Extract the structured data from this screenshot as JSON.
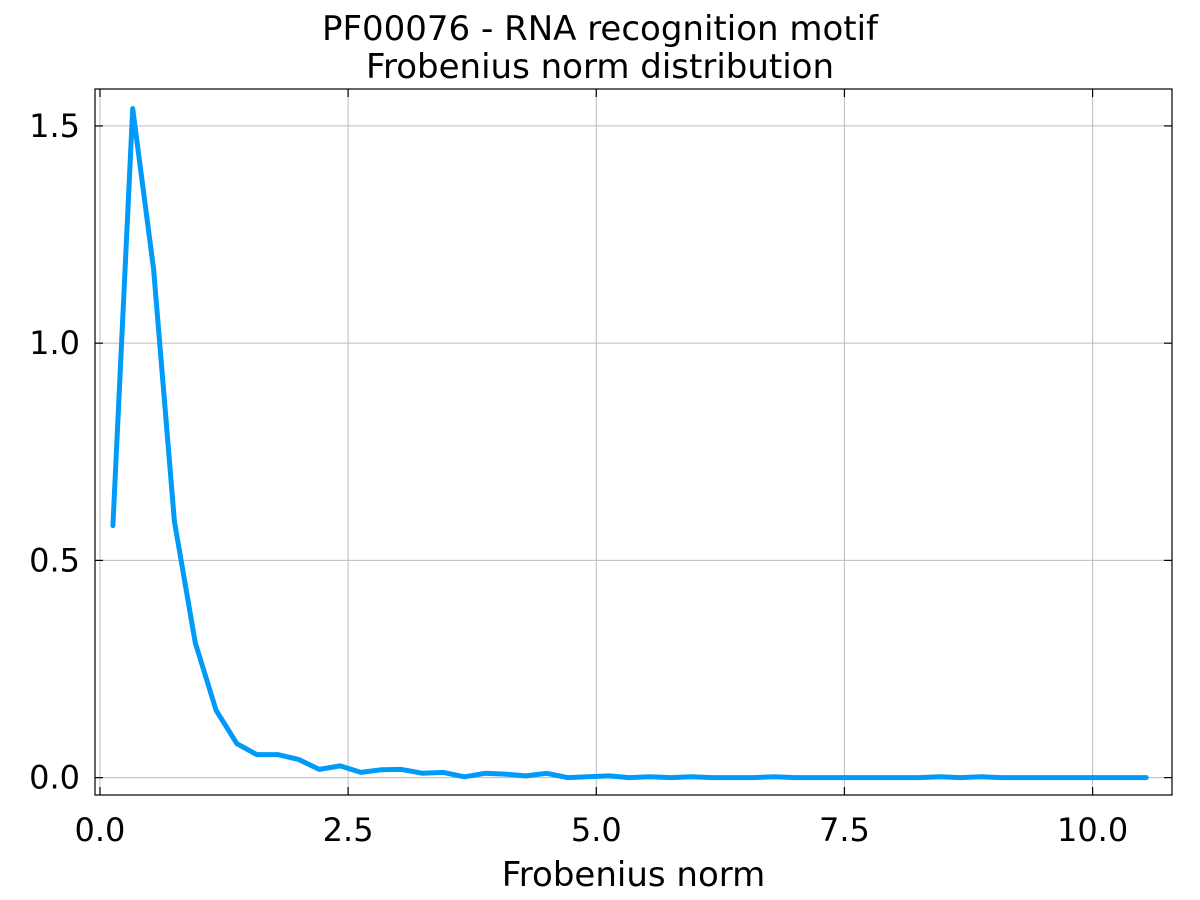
{
  "chart_data": {
    "type": "line",
    "title": "PF00076 - RNA recognition motif",
    "subtitle": "Frobenius norm distribution",
    "xlabel": "Frobenius norm",
    "ylabel": "",
    "xlim": [
      -0.05,
      10.8
    ],
    "ylim": [
      -0.04,
      1.585
    ],
    "xticks": [
      0.0,
      2.5,
      5.0,
      7.5,
      10.0
    ],
    "xtick_labels": [
      "0.0",
      "2.5",
      "5.0",
      "7.5",
      "10.0"
    ],
    "yticks": [
      0.0,
      0.5,
      1.0,
      1.5
    ],
    "ytick_labels": [
      "0.0",
      "0.5",
      "1.0",
      "1.5"
    ],
    "grid": true,
    "legend": "none",
    "series_color": "#009AF9",
    "series": [
      {
        "x": [
          0.13,
          0.33,
          0.54,
          0.75,
          0.96,
          1.17,
          1.38,
          1.58,
          1.79,
          2.0,
          2.21,
          2.42,
          2.63,
          2.83,
          3.04,
          3.25,
          3.46,
          3.67,
          3.88,
          4.08,
          4.29,
          4.5,
          4.71,
          4.92,
          5.13,
          5.33,
          5.54,
          5.75,
          5.96,
          6.17,
          6.38,
          6.58,
          6.79,
          7.0,
          7.21,
          7.42,
          7.63,
          7.83,
          8.04,
          8.25,
          8.46,
          8.67,
          8.88,
          9.08,
          9.29,
          9.5,
          9.71,
          9.92,
          10.13,
          10.33,
          10.54
        ],
        "y": [
          0.58,
          1.54,
          1.17,
          0.59,
          0.31,
          0.155,
          0.078,
          0.053,
          0.053,
          0.042,
          0.019,
          0.027,
          0.012,
          0.018,
          0.019,
          0.01,
          0.012,
          0.002,
          0.01,
          0.008,
          0.004,
          0.01,
          0.0,
          0.002,
          0.004,
          0.0,
          0.002,
          0.0,
          0.002,
          0.0,
          0.0,
          0.0,
          0.002,
          0.0,
          0.0,
          0.0,
          0.0,
          0.0,
          0.0,
          0.0,
          0.002,
          0.0,
          0.002,
          0.0,
          0.0,
          0.0,
          0.0,
          0.0,
          0.0,
          0.0,
          0.0
        ]
      }
    ]
  }
}
